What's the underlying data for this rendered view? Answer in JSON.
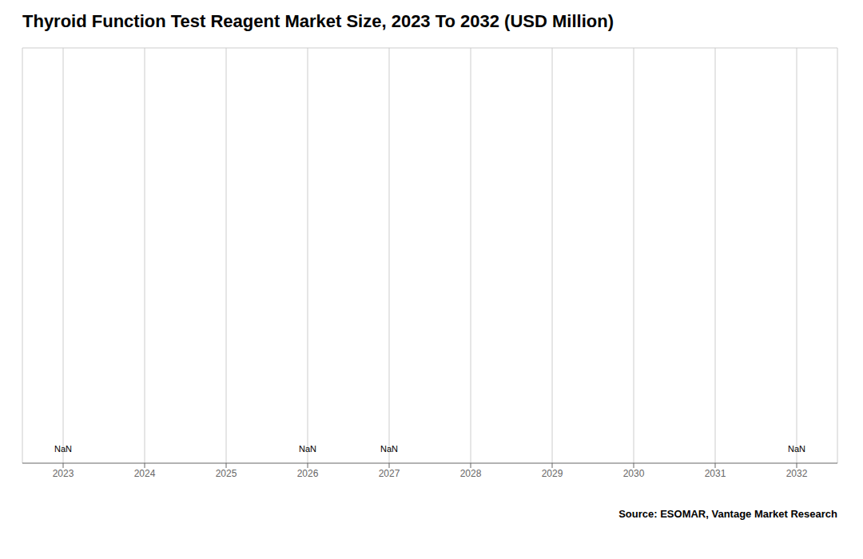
{
  "chart_data": {
    "type": "bar",
    "title": "Thyroid Function Test Reagent Market Size, 2023 To 2032 (USD Million)",
    "categories": [
      "2023",
      "2024",
      "2025",
      "2026",
      "2027",
      "2028",
      "2029",
      "2030",
      "2031",
      "2032"
    ],
    "values": [
      null,
      null,
      null,
      null,
      null,
      null,
      null,
      null,
      null,
      null
    ],
    "ylim": [
      0,
      1
    ],
    "grid": true,
    "tick_labels": "x",
    "annotations": [
      {
        "text": "NaN",
        "category": "2023"
      },
      {
        "text": "NaN",
        "category": "2026"
      },
      {
        "text": "NaN",
        "category": "2027"
      },
      {
        "text": "NaN",
        "category": "2032"
      },
      {
        "text": "Source: ESOMAR, Vantage Market Research"
      }
    ]
  }
}
